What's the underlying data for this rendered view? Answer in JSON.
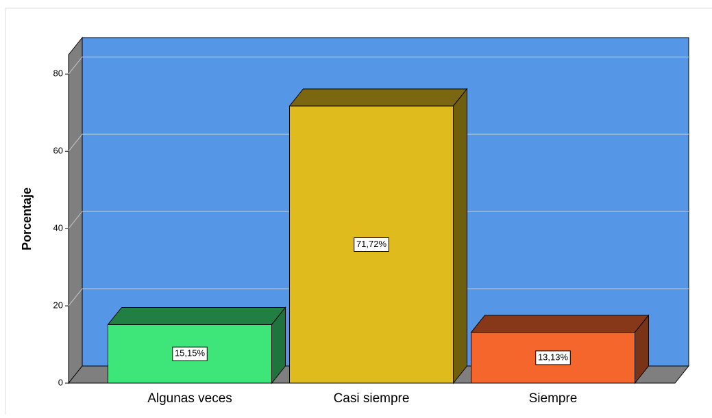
{
  "chart_data": {
    "type": "bar3d",
    "y_label": "Porcentaje",
    "categories": [
      "Algunas veces",
      "Casi siempre",
      "Siempre"
    ],
    "values": [
      15.15,
      71.72,
      13.13
    ],
    "value_labels": [
      "15,15%",
      "71,72%",
      "13,13%"
    ],
    "colors": [
      "#3ee67a",
      "#e0bb1e",
      "#f4662c"
    ],
    "wall_color": "#5596e6",
    "ylim": [
      0,
      85
    ],
    "yticks": [
      0,
      20,
      40,
      60,
      80
    ],
    "grid": true
  }
}
